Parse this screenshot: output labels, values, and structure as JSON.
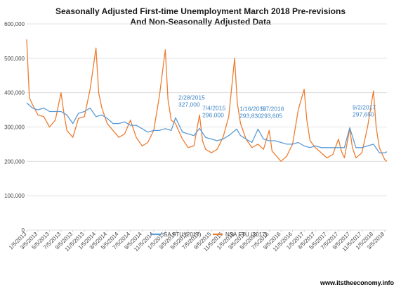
{
  "chart_data": {
    "type": "line",
    "title_lines": [
      "Seasonally Adjusted First-time Unemployment March 2018  Pre-revisions",
      "And Non-Seasonally Adjusted Data"
    ],
    "xlabel": "",
    "ylabel": "",
    "ylim": [
      0,
      600000
    ],
    "yticks": [
      "0",
      "100,000",
      "200,000",
      "300,000",
      "400,000",
      "500,000",
      "600,000"
    ],
    "yticks_values": [
      0,
      100000,
      200000,
      300000,
      400000,
      500000,
      600000
    ],
    "x_start": "1/5/2013",
    "x_end": "3/17/2018",
    "x_tick_labels": [
      "1/5/2013",
      "3/5/2013",
      "5/5/2013",
      "7/5/2013",
      "9/5/2013",
      "11/5/2013",
      "1/5/2014",
      "3/5/2014",
      "5/5/2014",
      "7/5/2014",
      "9/5/2014",
      "11/5/2014",
      "1/5/2015",
      "3/5/2015",
      "5/5/2015",
      "7/5/2015",
      "9/5/2015",
      "11/5/2015",
      "1/5/2016",
      "3/5/2016",
      "5/5/2016",
      "7/5/2016",
      "9/5/2016",
      "11/5/2016",
      "1/5/2017",
      "3/5/2017",
      "5/5/2017",
      "7/5/2017",
      "9/5/2017",
      "11/5/2017",
      "1/5/2018",
      "3/5/2018"
    ],
    "grid": true,
    "legend_position": "bottom",
    "series": [
      {
        "name": "SA FTU (2017)",
        "color": "#5b9bd5",
        "points": [
          [
            "1/5/2013",
            370000
          ],
          [
            "2/5/2013",
            355000
          ],
          [
            "3/5/2013",
            350000
          ],
          [
            "4/5/2013",
            355000
          ],
          [
            "5/5/2013",
            345000
          ],
          [
            "6/5/2013",
            345000
          ],
          [
            "7/5/2013",
            345000
          ],
          [
            "8/5/2013",
            335000
          ],
          [
            "9/5/2013",
            310000
          ],
          [
            "10/5/2013",
            340000
          ],
          [
            "11/5/2013",
            345000
          ],
          [
            "12/5/2013",
            355000
          ],
          [
            "1/5/2014",
            330000
          ],
          [
            "2/5/2014",
            335000
          ],
          [
            "3/5/2014",
            325000
          ],
          [
            "4/5/2014",
            310000
          ],
          [
            "5/5/2014",
            310000
          ],
          [
            "6/5/2014",
            315000
          ],
          [
            "7/5/2014",
            305000
          ],
          [
            "8/5/2014",
            305000
          ],
          [
            "9/5/2014",
            295000
          ],
          [
            "10/5/2014",
            285000
          ],
          [
            "11/5/2014",
            290000
          ],
          [
            "12/5/2014",
            290000
          ],
          [
            "1/5/2015",
            295000
          ],
          [
            "2/5/2015",
            290000
          ],
          [
            "2/28/2015",
            327000
          ],
          [
            "4/5/2015",
            285000
          ],
          [
            "5/5/2015",
            280000
          ],
          [
            "6/5/2015",
            275000
          ],
          [
            "7/4/2015",
            296000
          ],
          [
            "8/5/2015",
            270000
          ],
          [
            "9/5/2015",
            265000
          ],
          [
            "10/5/2015",
            260000
          ],
          [
            "11/5/2015",
            265000
          ],
          [
            "12/5/2015",
            275000
          ],
          [
            "1/16/2016",
            293830
          ],
          [
            "2/5/2016",
            275000
          ],
          [
            "3/5/2016",
            265000
          ],
          [
            "4/5/2016",
            255000
          ],
          [
            "5/7/2016",
            293605
          ],
          [
            "6/5/2016",
            265000
          ],
          [
            "7/5/2016",
            260000
          ],
          [
            "8/5/2016",
            260000
          ],
          [
            "9/5/2016",
            255000
          ],
          [
            "10/5/2016",
            250000
          ],
          [
            "11/5/2016",
            250000
          ],
          [
            "12/5/2016",
            255000
          ],
          [
            "1/5/2017",
            245000
          ],
          [
            "2/5/2017",
            240000
          ],
          [
            "3/5/2017",
            245000
          ],
          [
            "4/5/2017",
            240000
          ],
          [
            "5/5/2017",
            240000
          ],
          [
            "6/5/2017",
            240000
          ],
          [
            "7/5/2017",
            240000
          ],
          [
            "8/5/2017",
            240000
          ],
          [
            "9/2/2017",
            297650
          ],
          [
            "10/5/2017",
            240000
          ],
          [
            "11/5/2017",
            240000
          ],
          [
            "12/5/2017",
            245000
          ],
          [
            "1/5/2018",
            250000
          ],
          [
            "2/5/2018",
            225000
          ],
          [
            "3/5/2018",
            225000
          ],
          [
            "3/17/2018",
            228000
          ]
        ]
      },
      {
        "name": "NSA FTU (2017)",
        "color": "#ed7d31",
        "points": [
          [
            "1/5/2013",
            555000
          ],
          [
            "1/19/2013",
            385000
          ],
          [
            "2/5/2013",
            365000
          ],
          [
            "3/5/2013",
            335000
          ],
          [
            "4/5/2013",
            330000
          ],
          [
            "5/5/2013",
            300000
          ],
          [
            "6/5/2013",
            320000
          ],
          [
            "7/5/2013",
            400000
          ],
          [
            "7/20/2013",
            340000
          ],
          [
            "8/5/2013",
            290000
          ],
          [
            "9/5/2013",
            270000
          ],
          [
            "10/5/2013",
            325000
          ],
          [
            "11/5/2013",
            330000
          ],
          [
            "12/5/2013",
            410000
          ],
          [
            "1/5/2014",
            530000
          ],
          [
            "1/19/2014",
            400000
          ],
          [
            "2/5/2014",
            355000
          ],
          [
            "3/5/2014",
            310000
          ],
          [
            "4/5/2014",
            290000
          ],
          [
            "5/5/2014",
            270000
          ],
          [
            "6/5/2014",
            280000
          ],
          [
            "7/5/2014",
            320000
          ],
          [
            "8/5/2014",
            270000
          ],
          [
            "9/5/2014",
            245000
          ],
          [
            "10/5/2014",
            255000
          ],
          [
            "11/5/2014",
            290000
          ],
          [
            "12/5/2014",
            390000
          ],
          [
            "1/5/2015",
            525000
          ],
          [
            "1/19/2015",
            380000
          ],
          [
            "2/5/2015",
            320000
          ],
          [
            "2/28/2015",
            310000
          ],
          [
            "3/15/2015",
            290000
          ],
          [
            "4/5/2015",
            265000
          ],
          [
            "5/5/2015",
            240000
          ],
          [
            "6/5/2015",
            245000
          ],
          [
            "7/4/2015",
            335000
          ],
          [
            "7/20/2015",
            260000
          ],
          [
            "8/5/2015",
            235000
          ],
          [
            "9/5/2015",
            225000
          ],
          [
            "10/5/2015",
            235000
          ],
          [
            "11/5/2015",
            270000
          ],
          [
            "12/5/2015",
            330000
          ],
          [
            "1/5/2016",
            500000
          ],
          [
            "1/19/2016",
            370000
          ],
          [
            "2/5/2016",
            310000
          ],
          [
            "3/5/2016",
            265000
          ],
          [
            "4/5/2016",
            240000
          ],
          [
            "5/7/2016",
            250000
          ],
          [
            "6/5/2016",
            235000
          ],
          [
            "7/5/2016",
            290000
          ],
          [
            "7/20/2016",
            230000
          ],
          [
            "8/5/2016",
            220000
          ],
          [
            "9/5/2016",
            200000
          ],
          [
            "10/5/2016",
            215000
          ],
          [
            "11/5/2016",
            250000
          ],
          [
            "12/5/2016",
            350000
          ],
          [
            "1/5/2017",
            410000
          ],
          [
            "1/19/2017",
            320000
          ],
          [
            "2/5/2017",
            260000
          ],
          [
            "3/5/2017",
            240000
          ],
          [
            "4/5/2017",
            225000
          ],
          [
            "5/5/2017",
            210000
          ],
          [
            "6/5/2017",
            220000
          ],
          [
            "7/5/2017",
            265000
          ],
          [
            "7/20/2017",
            230000
          ],
          [
            "8/5/2017",
            210000
          ],
          [
            "9/2/2017",
            295000
          ],
          [
            "9/16/2017",
            240000
          ],
          [
            "10/5/2017",
            210000
          ],
          [
            "11/5/2017",
            225000
          ],
          [
            "12/5/2017",
            300000
          ],
          [
            "1/5/2018",
            405000
          ],
          [
            "1/19/2018",
            300000
          ],
          [
            "2/5/2018",
            240000
          ],
          [
            "3/5/2018",
            205000
          ],
          [
            "3/17/2018",
            200000
          ]
        ]
      }
    ],
    "annotations": [
      {
        "date": "2/28/2015",
        "lines": [
          "2/28/2015",
          "327,000"
        ]
      },
      {
        "date": "7/4/2015",
        "lines": [
          "7/4/2015",
          "296,000"
        ]
      },
      {
        "date": "1/16/2016",
        "lines": [
          "1/16/2016",
          "293,830"
        ]
      },
      {
        "date": "5/7/2016",
        "lines": [
          "5/7/2016",
          "293,605"
        ]
      },
      {
        "date": "9/2/2017",
        "lines": [
          "9/2/2017",
          "297,650"
        ]
      }
    ],
    "credit": "www.itstheeconomy.info"
  }
}
